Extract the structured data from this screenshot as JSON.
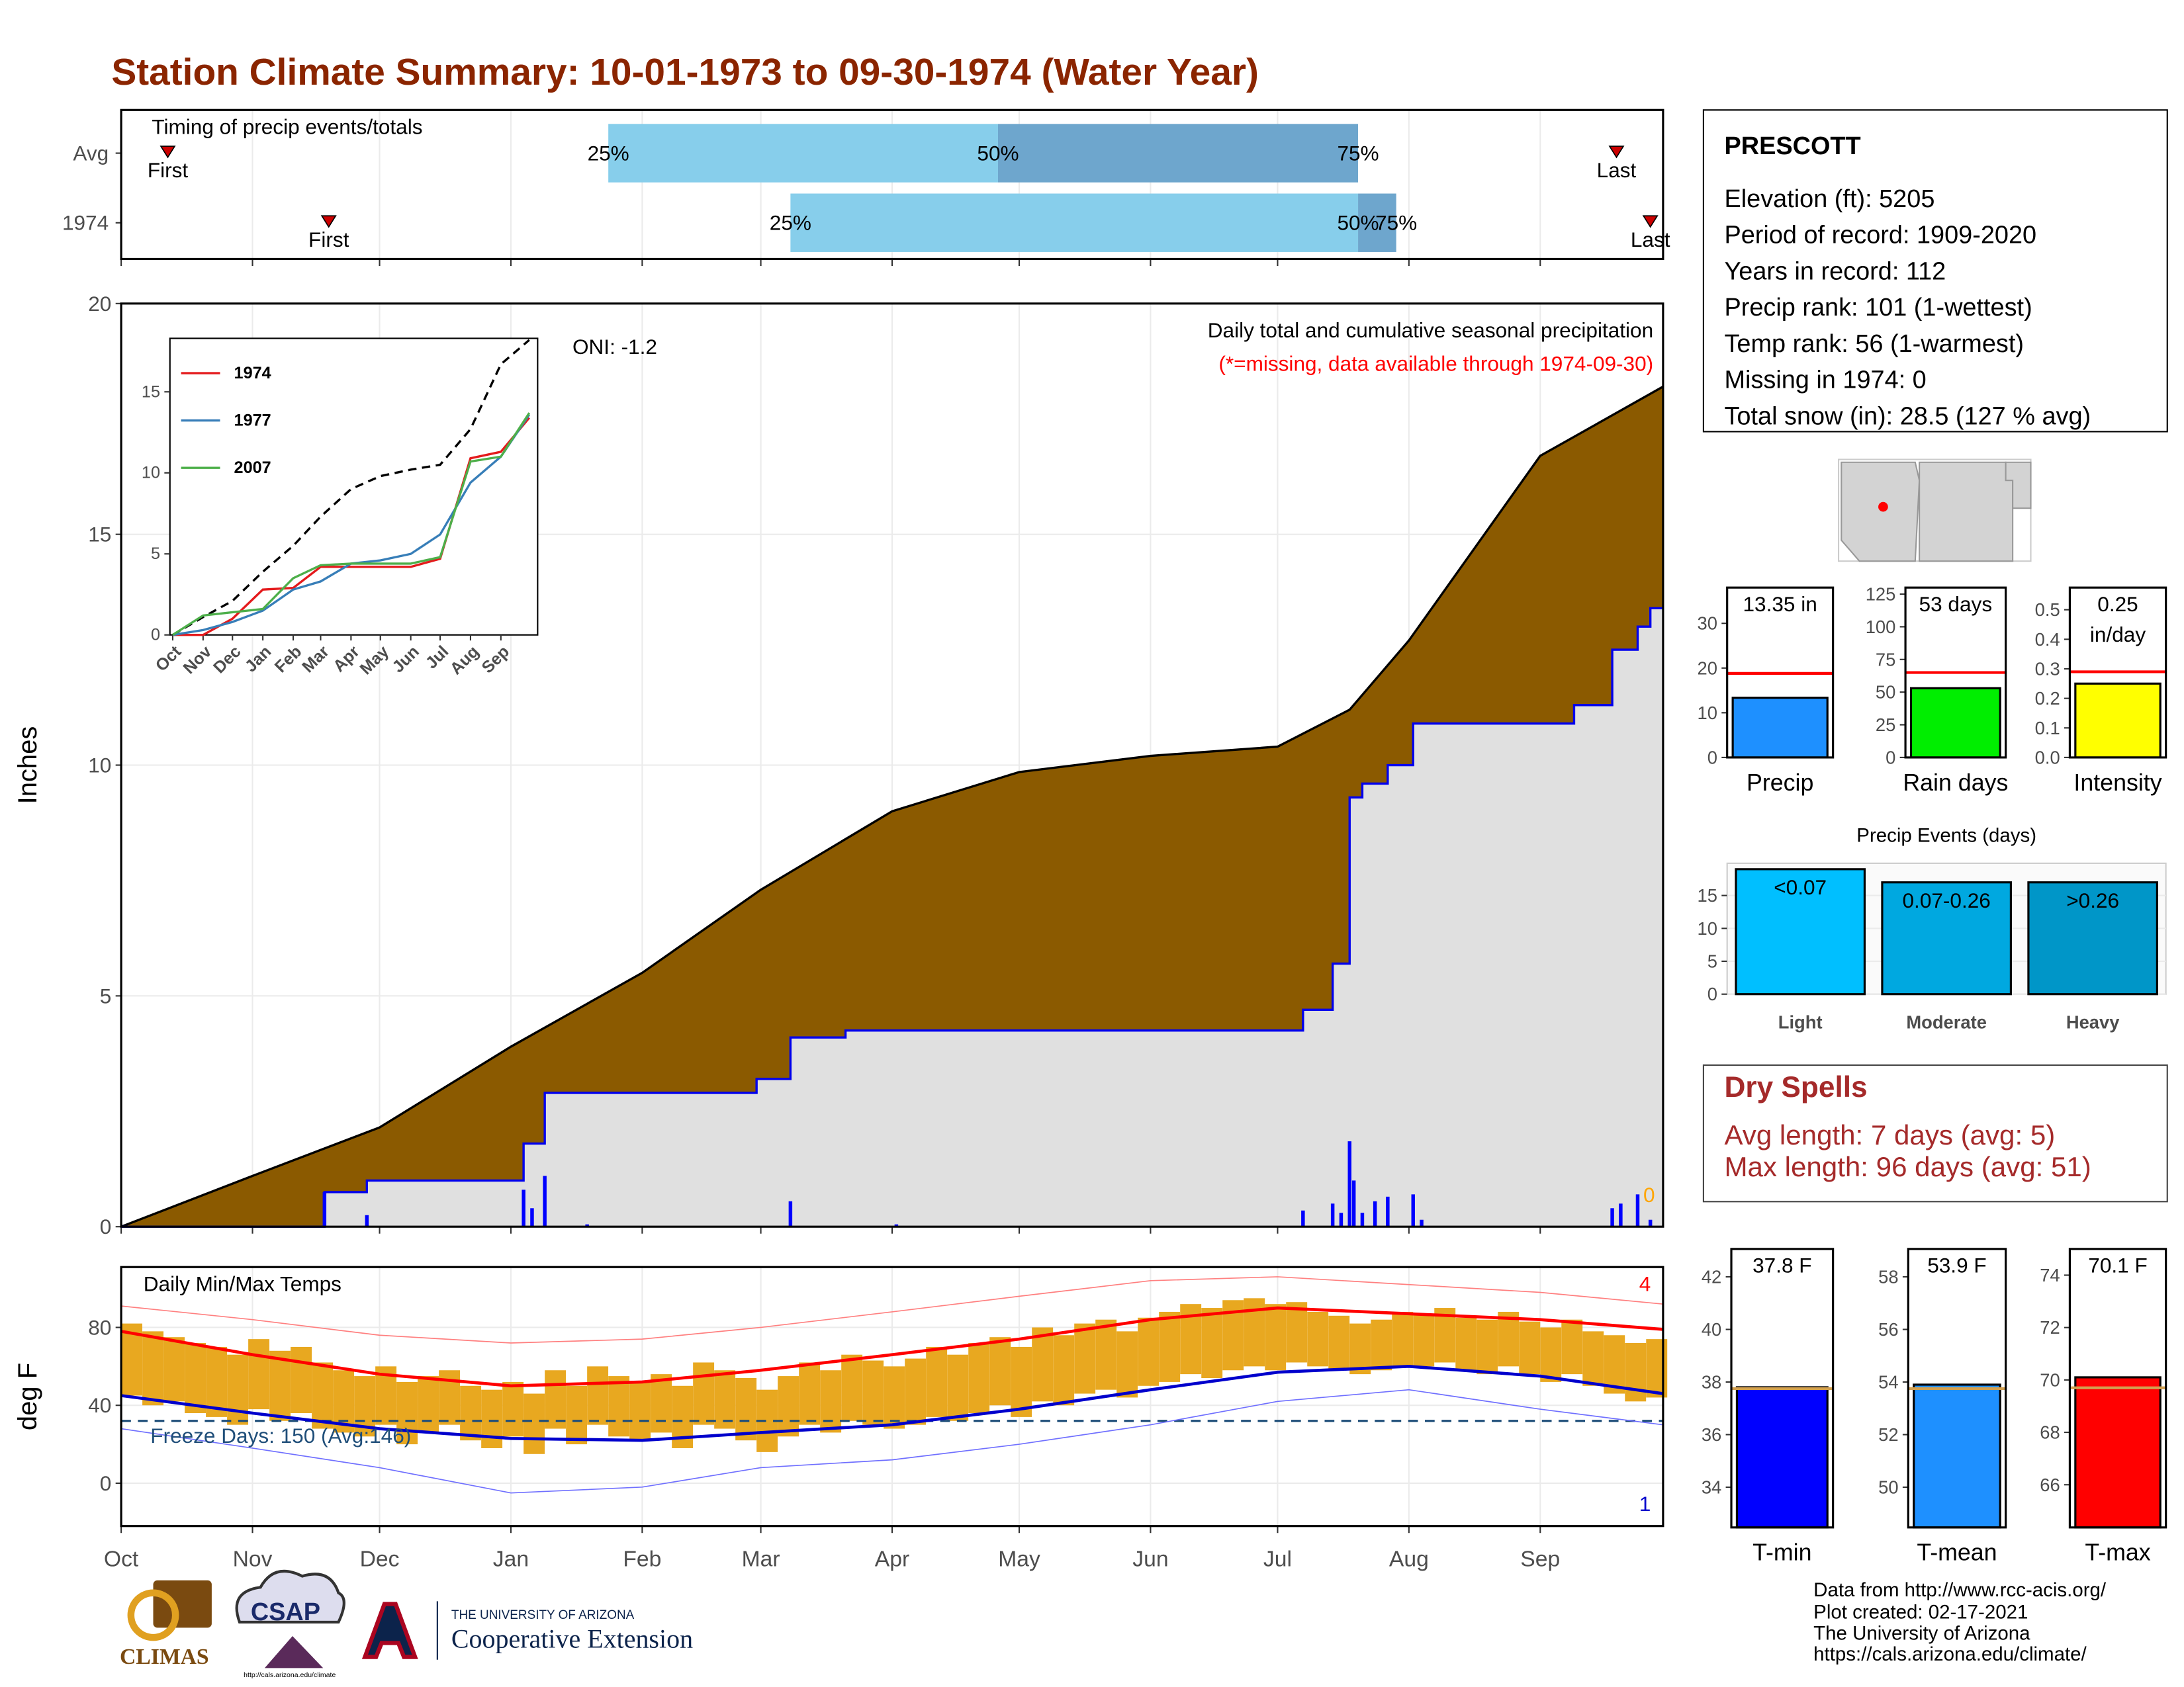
{
  "title": "Station Climate Summary: 10-01-1973 to 09-30-1974 (Water Year)",
  "station": {
    "name": "PRESCOTT",
    "lines": [
      "Elevation (ft): 5205",
      "Period of record: 1909-2020",
      "Years in record: 112",
      "Precip rank: 101 (1-wettest)",
      "Temp rank: 56 (1-warmest)",
      "Missing in 1974: 0",
      "Total snow (in): 28.5 (127 % avg)"
    ]
  },
  "dry_spells": {
    "title": "Dry Spells",
    "lines": [
      "Avg length: 7 days (avg: 5)",
      "Max length: 96 days (avg: 51)"
    ]
  },
  "footer": [
    "Data from http://www.rcc-acis.org/",
    "Plot created: 02-17-2021",
    "The University of Arizona",
    "https://cals.arizona.edu/climate/"
  ],
  "logos": [
    "CLIMAS",
    "CSAP",
    "http://cals.arizona.edu/climate",
    "THE UNIVERSITY OF ARIZONA",
    "Cooperative Extension"
  ],
  "chart_data": [
    {
      "type": "timeline",
      "title": "Timing of precip events/totals",
      "categories": [
        "Avg",
        "1974"
      ],
      "xlim": [
        0,
        364
      ],
      "markers": [
        {
          "name": "First",
          "values": [
            11,
            49
          ]
        },
        {
          "name": "25%",
          "values": [
            115,
            158
          ]
        },
        {
          "name": "50%",
          "values": [
            207,
            292
          ]
        },
        {
          "name": "75%",
          "values": [
            292,
            301
          ]
        },
        {
          "name": "Last",
          "values": [
            353,
            361
          ]
        }
      ],
      "colors": [
        "#87ceeb",
        "#6ea6cd"
      ],
      "marker_color": "#cc0000",
      "grid": true
    },
    {
      "type": "area",
      "ylabel": "Inches",
      "subtitle": "Daily total and cumulative seasonal precipitation",
      "note": "(*=missing, data available through 1974-09-30)",
      "oni": "ONI: -1.2",
      "missing_days": 0,
      "xlim": [
        0,
        364
      ],
      "ylim": [
        0,
        20
      ],
      "yticks": [
        0,
        5,
        10,
        15,
        20
      ],
      "grid": true,
      "series": [
        {
          "type": "area",
          "color": "#000000",
          "fill": "#8b5a00",
          "x": [
            0,
            31,
            61,
            92,
            123,
            151,
            182,
            212,
            243,
            273,
            290,
            304,
            335,
            364
          ],
          "values": [
            0,
            1.1,
            2.15,
            3.9,
            5.5,
            7.3,
            9.0,
            9.85,
            10.2,
            10.4,
            11.2,
            12.7,
            16.7,
            18.2
          ]
        },
        {
          "type": "area",
          "color": "#0000ee",
          "fill": "#e0e0e0",
          "x": [
            0,
            48,
            48,
            58,
            58,
            95,
            95,
            100,
            100,
            150,
            150,
            158,
            158,
            171,
            171,
            279,
            279,
            286,
            286,
            290,
            290,
            293,
            293,
            299,
            299,
            305,
            305,
            343,
            343,
            352,
            352,
            358,
            358,
            361,
            361,
            364
          ],
          "values": [
            0,
            0,
            0.75,
            0.75,
            1.0,
            1.0,
            1.8,
            1.8,
            2.9,
            2.9,
            3.2,
            3.2,
            4.1,
            4.1,
            4.25,
            4.25,
            4.7,
            4.7,
            5.7,
            5.7,
            9.3,
            9.3,
            9.6,
            9.6,
            10.0,
            10.0,
            10.9,
            10.9,
            11.3,
            11.3,
            12.5,
            12.5,
            13.0,
            13.0,
            13.4,
            13.4
          ]
        },
        {
          "type": "bar",
          "color": "#0000ff",
          "x": [
            48,
            58,
            95,
            97,
            100,
            110,
            158,
            183,
            279,
            286,
            288,
            290,
            291,
            293,
            296,
            299,
            305,
            307,
            352,
            354,
            358,
            361
          ],
          "values": [
            0.75,
            0.25,
            0.8,
            0.4,
            1.1,
            0.05,
            0.55,
            0.05,
            0.35,
            0.5,
            0.3,
            1.85,
            1.0,
            0.3,
            0.55,
            0.65,
            0.7,
            0.15,
            0.4,
            0.5,
            0.7,
            0.15
          ]
        }
      ]
    },
    {
      "type": "line",
      "xlim": [
        0,
        364
      ],
      "ylim": [
        0,
        18.3
      ],
      "yticks": [
        0,
        5,
        10,
        15
      ],
      "legend": "top-left",
      "xticks": [
        {
          "value": 0,
          "label": "Oct"
        },
        {
          "value": 31,
          "label": "Nov"
        },
        {
          "value": 61,
          "label": "Dec"
        },
        {
          "value": 92,
          "label": "Jan"
        },
        {
          "value": 123,
          "label": "Feb"
        },
        {
          "value": 151,
          "label": "Mar"
        },
        {
          "value": 182,
          "label": "Apr"
        },
        {
          "value": 212,
          "label": "May"
        },
        {
          "value": 243,
          "label": "Jun"
        },
        {
          "value": 273,
          "label": "Jul"
        },
        {
          "value": 304,
          "label": "Aug"
        },
        {
          "value": 335,
          "label": "Sep"
        }
      ],
      "x": [
        0,
        31,
        61,
        92,
        123,
        151,
        182,
        212,
        243,
        273,
        304,
        335,
        364
      ],
      "series": [
        {
          "color": "#000000",
          "dash": true,
          "values": [
            0,
            1.1,
            2.1,
            3.9,
            5.5,
            7.3,
            9.0,
            9.8,
            10.2,
            10.5,
            12.7,
            16.7,
            18.2
          ]
        },
        {
          "name": "1974",
          "color": "#e41a1c",
          "values": [
            0,
            0,
            1,
            2.8,
            2.9,
            4.2,
            4.2,
            4.2,
            4.2,
            4.7,
            10.9,
            11.3,
            13.4
          ]
        },
        {
          "name": "1977",
          "color": "#377eb8",
          "values": [
            0,
            0.3,
            0.8,
            1.5,
            2.8,
            3.3,
            4.4,
            4.6,
            5.0,
            6.2,
            9.4,
            11.0,
            13.6
          ]
        },
        {
          "name": "2007",
          "color": "#4daf4a",
          "values": [
            0,
            1.2,
            1.4,
            1.6,
            3.5,
            4.3,
            4.4,
            4.4,
            4.4,
            4.8,
            10.7,
            11.0,
            13.7
          ]
        }
      ]
    },
    {
      "type": "range_bar",
      "title": "Daily Min/Max Temps",
      "ylabel": "deg F",
      "note": "Freeze Days: 150 (Avg:146)",
      "record_highs": 4,
      "record_lows": 1,
      "xlim": [
        0,
        364
      ],
      "ylim": [
        -22,
        111
      ],
      "yticks": [
        0,
        40,
        80
      ],
      "grid": true,
      "freeze_line": 32,
      "bar_color": "#e8a820",
      "xticks": [
        {
          "value": 0,
          "label": "Oct"
        },
        {
          "value": 31,
          "label": "Nov"
        },
        {
          "value": 61,
          "label": "Dec"
        },
        {
          "value": 92,
          "label": "Jan"
        },
        {
          "value": 123,
          "label": "Feb"
        },
        {
          "value": 151,
          "label": "Mar"
        },
        {
          "value": 182,
          "label": "Apr"
        },
        {
          "value": 212,
          "label": "May"
        },
        {
          "value": 243,
          "label": "Jun"
        },
        {
          "value": 273,
          "label": "Jul"
        },
        {
          "value": 304,
          "label": "Aug"
        },
        {
          "value": 335,
          "label": "Sep"
        }
      ],
      "bar_x": [
        0,
        5,
        10,
        15,
        20,
        25,
        30,
        35,
        40,
        45,
        50,
        55,
        60,
        65,
        70,
        75,
        80,
        85,
        90,
        95,
        100,
        105,
        110,
        115,
        120,
        125,
        130,
        135,
        140,
        145,
        150,
        155,
        160,
        165,
        170,
        175,
        180,
        185,
        190,
        195,
        200,
        205,
        210,
        215,
        220,
        225,
        230,
        235,
        240,
        245,
        250,
        255,
        260,
        265,
        270,
        275,
        280,
        285,
        290,
        295,
        300,
        305,
        310,
        315,
        320,
        325,
        330,
        335,
        340,
        345,
        350,
        355,
        360
      ],
      "daily_high": [
        82,
        78,
        75,
        72,
        70,
        66,
        74,
        68,
        70,
        62,
        58,
        55,
        60,
        52,
        55,
        58,
        50,
        48,
        52,
        46,
        58,
        50,
        60,
        55,
        52,
        56,
        50,
        62,
        58,
        54,
        48,
        55,
        62,
        58,
        66,
        63,
        60,
        64,
        70,
        66,
        72,
        75,
        70,
        80,
        76,
        82,
        84,
        78,
        85,
        88,
        92,
        90,
        94,
        95,
        92,
        93,
        88,
        86,
        82,
        84,
        88,
        87,
        90,
        85,
        84,
        88,
        83,
        80,
        84,
        78,
        76,
        72,
        74
      ],
      "daily_low": [
        45,
        40,
        42,
        36,
        34,
        30,
        38,
        32,
        36,
        28,
        26,
        24,
        30,
        20,
        26,
        30,
        22,
        18,
        24,
        15,
        28,
        20,
        30,
        24,
        22,
        26,
        18,
        30,
        28,
        22,
        16,
        24,
        30,
        26,
        32,
        30,
        28,
        30,
        34,
        32,
        36,
        40,
        34,
        42,
        40,
        46,
        48,
        44,
        50,
        52,
        56,
        54,
        58,
        60,
        58,
        62,
        60,
        58,
        56,
        58,
        60,
        60,
        62,
        58,
        56,
        60,
        56,
        52,
        56,
        50,
        46,
        42,
        44
      ],
      "x": [
        0,
        31,
        61,
        92,
        123,
        151,
        182,
        212,
        243,
        273,
        304,
        335,
        364
      ],
      "series": [
        {
          "color": "#ff8080",
          "values": [
            91,
            84,
            76,
            72,
            74,
            80,
            88,
            96,
            104,
            106,
            102,
            98,
            92
          ]
        },
        {
          "color": "#ff0000",
          "values": [
            78,
            66,
            56,
            50,
            52,
            58,
            66,
            74,
            84,
            90,
            87,
            84,
            79
          ]
        },
        {
          "color": "#0000cc",
          "values": [
            45,
            36,
            28,
            23,
            22,
            26,
            30,
            38,
            48,
            57,
            60,
            55,
            46
          ]
        },
        {
          "color": "#7070ff",
          "values": [
            28,
            18,
            8,
            -5,
            -2,
            8,
            12,
            20,
            30,
            42,
            48,
            38,
            30
          ]
        }
      ]
    },
    {
      "type": "bar",
      "categories": [
        "Precip"
      ],
      "values": [
        13.35
      ],
      "value_labels": [
        "13.35 in"
      ],
      "colors": [
        "#1e90ff"
      ],
      "reference": 18.8,
      "reference_color": "#ff0000",
      "ylim": [
        0,
        38
      ],
      "yticks": [
        0,
        10,
        20,
        30
      ]
    },
    {
      "type": "bar",
      "categories": [
        "Rain days"
      ],
      "values": [
        53
      ],
      "value_labels": [
        "53 days"
      ],
      "colors": [
        "#00ee00"
      ],
      "reference": 65,
      "reference_color": "#ff0000",
      "ylim": [
        0,
        130
      ],
      "yticks": [
        0,
        25,
        50,
        75,
        100,
        125
      ]
    },
    {
      "type": "bar",
      "categories": [
        "Intensity"
      ],
      "values": [
        0.25
      ],
      "value_labels": [
        "0.25 in/day"
      ],
      "colors": [
        "#ffff00"
      ],
      "reference": 0.29,
      "reference_color": "#ff0000",
      "ylim": [
        0,
        0.575
      ],
      "yticks": [
        {
          "value": 0,
          "label": "0.0"
        },
        0.1,
        0.2,
        0.3,
        0.4,
        0.5
      ]
    },
    {
      "type": "bar",
      "title": "Precip Events (days)",
      "categories": [
        "Light",
        "Moderate",
        "Heavy"
      ],
      "values": [
        19,
        17,
        17
      ],
      "bin_labels": [
        "<0.07",
        "0.07-0.26",
        ">0.26"
      ],
      "colors": [
        "#00bfff",
        "#00a8e0",
        "#0096c8"
      ],
      "ylim": [
        0,
        19.9
      ],
      "yticks": [
        0,
        5,
        10,
        15
      ],
      "grid": true
    },
    {
      "type": "bar",
      "categories": [
        "T-min"
      ],
      "values": [
        37.8
      ],
      "value_labels": [
        "37.8 F"
      ],
      "colors": [
        "#0000ff"
      ],
      "reference": 37.75,
      "reference_color": "#d2a050",
      "ylim": [
        32.47,
        43.06
      ],
      "yticks": [
        34,
        36,
        38,
        40,
        42
      ]
    },
    {
      "type": "bar",
      "categories": [
        "T-mean"
      ],
      "values": [
        53.9
      ],
      "value_labels": [
        "53.9 F"
      ],
      "colors": [
        "#1e90ff"
      ],
      "reference": 53.75,
      "reference_color": "#d2a050",
      "ylim": [
        48.47,
        59.06
      ],
      "yticks": [
        50,
        52,
        54,
        56,
        58
      ]
    },
    {
      "type": "bar",
      "categories": [
        "T-max"
      ],
      "values": [
        70.1
      ],
      "value_labels": [
        "70.1 F"
      ],
      "colors": [
        "#ff0000"
      ],
      "reference": 69.7,
      "reference_color": "#d2a050",
      "ylim": [
        64.37,
        75.0
      ],
      "yticks": [
        66,
        68,
        70,
        72,
        74
      ]
    }
  ]
}
